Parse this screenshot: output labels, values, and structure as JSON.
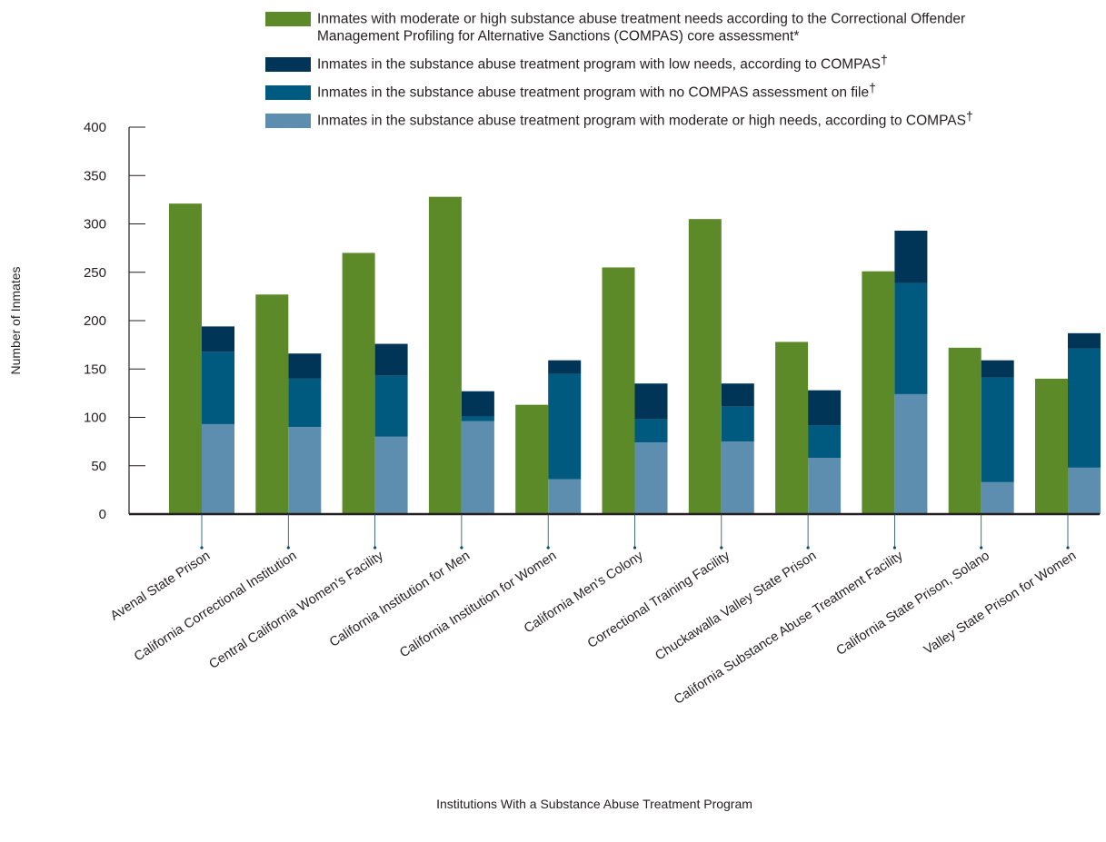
{
  "chart_data": {
    "type": "bar",
    "title": "",
    "xlabel": "Institutions With a Substance Abuse Treatment Program",
    "ylabel": "Number of Inmates",
    "ylim": [
      0,
      400
    ],
    "yticks": [
      0,
      50,
      100,
      150,
      200,
      250,
      300,
      350,
      400
    ],
    "legend_position": "top",
    "grid": false,
    "categories": [
      "Avenal State Prison",
      "California Correctional Institution",
      "Central California Women's Facility",
      "California Institution for Men",
      "California Institution for Women",
      "California Men's Colony",
      "Correctional Training Facility",
      "Chuckawalla Valley State Prison",
      "California Substance Abuse Treatment Facility",
      "California State Prison, Solano",
      "Valley State Prison for Women"
    ],
    "series": [
      {
        "legend_line1": "Inmates with moderate or high substance abuse treatment needs according to the Correctional Offender",
        "legend_line2": "Management Profiling for Alternative Sanctions (COMPAS) core assessment*",
        "color": "#5c8a29",
        "stack": "needs",
        "values": [
          321,
          227,
          270,
          328,
          113,
          255,
          305,
          178,
          251,
          172,
          140
        ]
      },
      {
        "legend_line1": "Inmates in the substance abuse treatment program with moderate or high needs, according to COMPAS",
        "legend_mark": "†",
        "color": "#5e8eaf",
        "stack": "program",
        "values": [
          93,
          90,
          80,
          96,
          36,
          74,
          75,
          58,
          124,
          33,
          48
        ]
      },
      {
        "legend_line1": "Inmates in the substance abuse treatment program with no COMPAS assessment on file",
        "legend_mark": "†",
        "color": "#005a80",
        "stack": "program",
        "values": [
          75,
          50,
          63,
          5,
          109,
          24,
          36,
          34,
          115,
          108,
          123
        ]
      },
      {
        "legend_line1": "Inmates in the substance abuse treatment program with low needs, according to COMPAS",
        "legend_mark": "†",
        "color": "#003558",
        "stack": "program",
        "values": [
          26,
          26,
          33,
          26,
          14,
          37,
          24,
          36,
          54,
          18,
          16
        ]
      }
    ],
    "legend_order": [
      0,
      3,
      2,
      1
    ]
  }
}
